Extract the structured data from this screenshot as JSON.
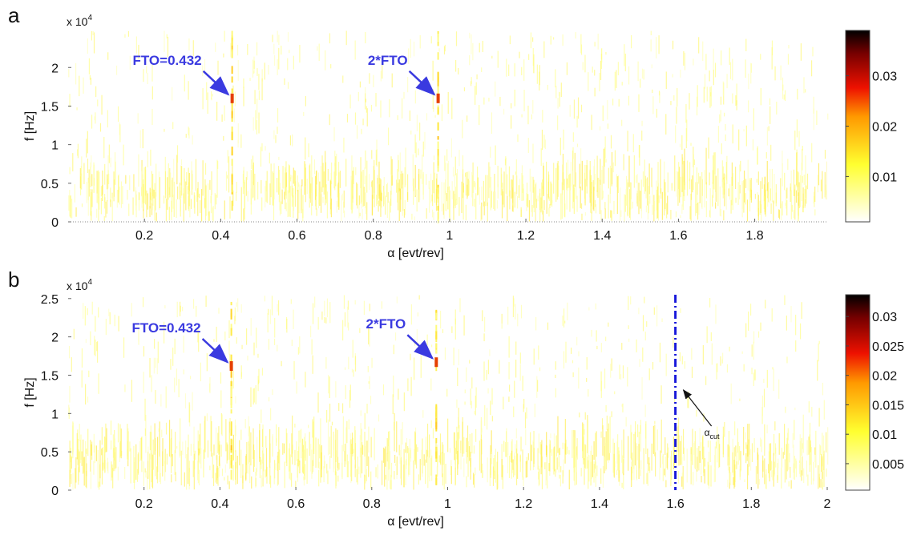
{
  "chart_data": [
    {
      "type": "heatmap",
      "panel_label": "a",
      "xlabel": "α [evt/rev]",
      "ylabel": "f [Hz]",
      "y_multiplier": {
        "base": "x 10",
        "exponent": "4"
      },
      "xlim": [
        0,
        1.99
      ],
      "xticks": [
        0.2,
        0.4,
        0.6,
        0.8,
        1,
        1.2,
        1.4,
        1.6,
        1.8
      ],
      "ylim": [
        0,
        2.48
      ],
      "yticks": [
        0,
        0.5,
        1,
        1.5,
        2
      ],
      "colorbar": {
        "clim": [
          0.001,
          0.039
        ],
        "ticks": [
          0.01,
          0.02,
          0.03
        ],
        "colormap": "hot_r"
      },
      "annotations": [
        {
          "text": "FTO=0.432",
          "x": 0.43,
          "y": 1.6,
          "color": "#3a3ae0"
        },
        {
          "text": "2*FTO",
          "x": 0.97,
          "y": 1.6,
          "color": "#3a3ae0"
        }
      ]
    },
    {
      "type": "heatmap",
      "panel_label": "b",
      "xlabel": "α [evt/rev]",
      "ylabel": "f [Hz]",
      "y_multiplier": {
        "base": "x 10",
        "exponent": "4"
      },
      "xlim": [
        0,
        2
      ],
      "xticks": [
        0.2,
        0.4,
        0.6,
        0.8,
        1,
        1.2,
        1.4,
        1.6,
        1.8,
        2
      ],
      "ylim": [
        0,
        2.55
      ],
      "yticks": [
        0,
        0.5,
        1,
        1.5,
        2,
        2.5
      ],
      "colorbar": {
        "clim": [
          0.0005,
          0.0337
        ],
        "ticks": [
          0.005,
          0.01,
          0.015,
          0.02,
          0.025,
          0.03
        ],
        "colormap": "hot_r"
      },
      "annotations": [
        {
          "text": "FTO=0.432",
          "x": 0.43,
          "y": 1.62,
          "color": "#3a3ae0"
        },
        {
          "text": "2*FTO",
          "x": 0.97,
          "y": 1.67,
          "color": "#3a3ae0"
        }
      ],
      "vline": {
        "x": 1.6,
        "label": "α",
        "label_sub": "cut",
        "color": "#1a1adb"
      }
    }
  ]
}
